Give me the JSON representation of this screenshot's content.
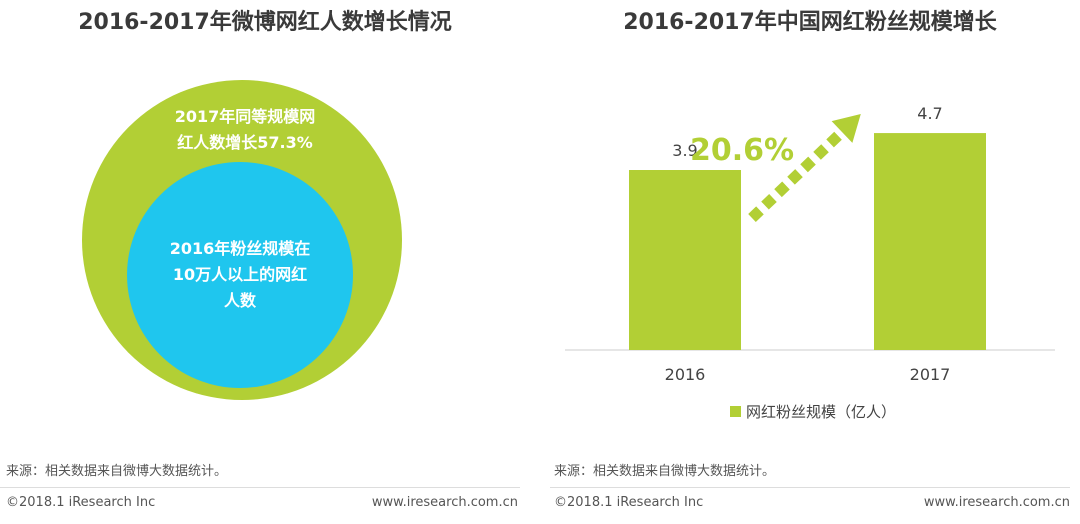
{
  "left": {
    "title": "2016-2017年微博网红人数增长情况",
    "outer_circle_text": "2017年同等规模网\n红人数增长57.3%",
    "inner_circle_text": "2016年粉丝规模在\n10万人以上的网红\n人数",
    "source": "来源：相关数据来自微博大数据统计。",
    "copyright": "©2018.1 iResearch Inc",
    "website": "www.iresearch.com.cn"
  },
  "right": {
    "title": "2016-2017年中国网红粉丝规模增长",
    "source": "来源：相关数据来自微博大数据统计。",
    "copyright": "©2018.1 iResearch Inc",
    "website": "www.iresearch.com.cn"
  },
  "colors": {
    "green": "#b2cf35",
    "blue": "#1fc6ee",
    "axis": "#cccccc"
  },
  "chart_data": [
    {
      "type": "nested-circle",
      "title": "2016-2017年微博网红人数增长情况",
      "outer_label": "2017年同等规模网红人数增长57.3%",
      "inner_label": "2016年粉丝规模在10万人以上的网红人数",
      "growth_rate_percent": 57.3
    },
    {
      "type": "bar",
      "title": "2016-2017年中国网红粉丝规模增长",
      "categories": [
        "2016",
        "2017"
      ],
      "values": [
        3.9,
        4.7
      ],
      "value_labels": [
        "3.9",
        "4.7"
      ],
      "legend": "网红粉丝规模（亿人）",
      "growth_label": "20.6%",
      "ylim": [
        0,
        5.2
      ]
    }
  ]
}
